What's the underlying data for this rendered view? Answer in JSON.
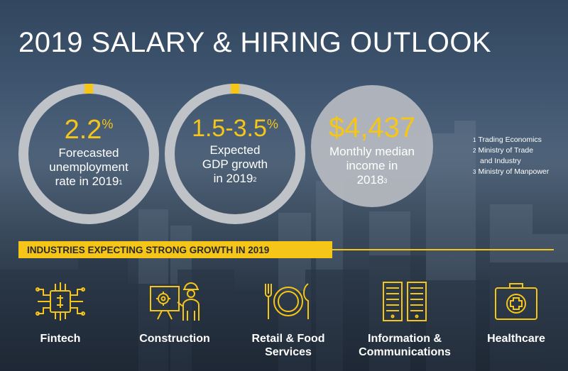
{
  "title": "2019 SALARY & HIRING OUTLOOK",
  "stats": [
    {
      "value": "2.2",
      "value_suffix": "%",
      "desc_lines": [
        "Forecasted",
        "unemployment",
        "rate in 2019"
      ],
      "ref": "1"
    },
    {
      "value": "1.5-3.5",
      "value_suffix": "%",
      "desc_lines": [
        "Expected",
        "GDP growth",
        "in 2019"
      ],
      "ref": "2"
    },
    {
      "value": "$4,437",
      "value_suffix": "",
      "desc_lines": [
        "Monthly median",
        "income in",
        "2018"
      ],
      "ref": "3"
    }
  ],
  "references": [
    {
      "num": "1",
      "lines": [
        "Trading Economics"
      ]
    },
    {
      "num": "2",
      "lines": [
        "Ministry of Trade",
        "and Industry"
      ]
    },
    {
      "num": "3",
      "lines": [
        "Ministry of Manpower"
      ]
    }
  ],
  "banner": "INDUSTRIES EXPECTING STRONG GROWTH IN 2019",
  "industries": [
    {
      "icon": "circuit-chip-icon",
      "lines": [
        "Fintech"
      ]
    },
    {
      "icon": "construction-worker-icon",
      "lines": [
        "Construction"
      ]
    },
    {
      "icon": "plate-cutlery-icon",
      "lines": [
        "Retail & Food",
        "Services"
      ]
    },
    {
      "icon": "server-rack-icon",
      "lines": [
        "Information &",
        "Communications"
      ]
    },
    {
      "icon": "medical-kit-icon",
      "lines": [
        "Healthcare"
      ]
    }
  ],
  "colors": {
    "accent": "#f5c518",
    "ring": "#bfc3c8",
    "text": "#ffffff"
  }
}
